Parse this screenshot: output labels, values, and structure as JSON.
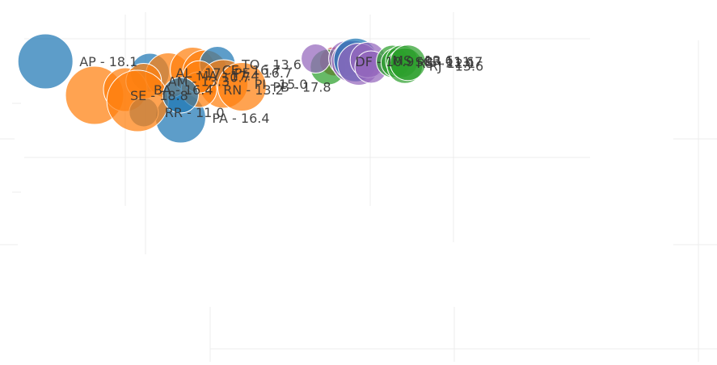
{
  "chart_data": {
    "type": "scatter",
    "title": "",
    "xlabel": "",
    "ylabel": "",
    "grid": true,
    "colors": {
      "blue": "#1f77b4",
      "orange": "#ff7f0e",
      "green": "#2ca02c",
      "red": "#d62728",
      "purple": "#9467bd"
    },
    "points": [
      {
        "label": "PA - 16.4",
        "color": "blue",
        "x": 0.9,
        "y": 1.4,
        "size": 31,
        "show_label": true
      },
      {
        "label": "SE - 18.8",
        "color": "orange",
        "x": -0.5,
        "y": 2.2,
        "size": 36,
        "show_label": true
      },
      {
        "label": "AP - 18.1",
        "color": "blue",
        "x": -1.3,
        "y": 3.4,
        "size": 34,
        "show_label": true
      },
      {
        "label": "AL - 17",
        "color": "blue",
        "x": 0.4,
        "y": 3.0,
        "size": 24,
        "show_label": true
      },
      {
        "label": "MA - 17.4",
        "color": "orange",
        "x": 0.7,
        "y": 2.9,
        "size": 28,
        "show_label": true
      },
      {
        "label": "BA - 16.4",
        "color": "orange",
        "x": 0.0,
        "y": 2.4,
        "size": 27,
        "show_label": true
      },
      {
        "label": "RR - 11.0",
        "color": "blue",
        "x": 0.3,
        "y": 1.6,
        "size": 18,
        "show_label": true
      },
      {
        "label": "CE - 16.7",
        "color": "orange",
        "x": 1.1,
        "y": 3.1,
        "size": 28,
        "show_label": true
      },
      {
        "label": "PE - 16.7",
        "color": "orange",
        "x": 1.3,
        "y": 3.0,
        "size": 28,
        "show_label": true
      },
      {
        "label": "TO - 13.6",
        "color": "blue",
        "x": 1.5,
        "y": 3.3,
        "size": 22,
        "show_label": true
      },
      {
        "label": "PI - 15.0",
        "color": "orange",
        "x": 1.6,
        "y": 2.6,
        "size": 30,
        "show_label": true
      },
      {
        "label": "RN - 13.2",
        "color": "orange",
        "x": 1.2,
        "y": 2.4,
        "size": 22,
        "show_label": true
      },
      {
        "label": "PB - 17.8",
        "color": "orange",
        "x": 1.9,
        "y": 2.5,
        "size": 30,
        "show_label": true
      },
      {
        "label": "AM - 13.3",
        "color": "orange",
        "x": 0.3,
        "y": 2.7,
        "size": 22,
        "show_label": true
      },
      {
        "label": "10.7",
        "color": "orange",
        "x": 1.2,
        "y": 2.85,
        "size": 20,
        "show_label": true
      },
      {
        "label": "",
        "color": "orange",
        "x": 0.2,
        "y": 2.0,
        "size": 38,
        "show_label": false
      },
      {
        "label": "",
        "color": "blue",
        "x": 0.9,
        "y": 2.2,
        "size": 22,
        "show_label": false
      },
      {
        "label": "DF - 10.9",
        "color": "red",
        "x": 3.4,
        "y": 3.4,
        "size": 18,
        "show_label": true
      },
      {
        "label": "",
        "color": "green",
        "x": 3.3,
        "y": 3.2,
        "size": 22,
        "show_label": false
      },
      {
        "label": "",
        "color": "purple",
        "x": 3.1,
        "y": 3.5,
        "size": 18,
        "show_label": false
      },
      {
        "label": "",
        "color": "purple",
        "x": 3.6,
        "y": 3.5,
        "size": 22,
        "show_label": false
      },
      {
        "label": "",
        "color": "purple",
        "x": 3.7,
        "y": 3.4,
        "size": 26,
        "show_label": false
      },
      {
        "label": "",
        "color": "blue",
        "x": 3.75,
        "y": 3.45,
        "size": 27,
        "show_label": false
      },
      {
        "label": "",
        "color": "purple",
        "x": 3.8,
        "y": 3.3,
        "size": 26,
        "show_label": false
      },
      {
        "label": "MS - 13.6",
        "color": "purple",
        "x": 3.95,
        "y": 3.45,
        "size": 22,
        "show_label": true
      },
      {
        "label": "",
        "color": "purple",
        "x": 4.0,
        "y": 3.2,
        "size": 20,
        "show_label": false
      },
      {
        "label": "SC - 11.6",
        "color": "green",
        "x": 4.35,
        "y": 3.4,
        "size": 20,
        "show_label": true
      },
      {
        "label": "RS - 12.1",
        "color": "green",
        "x": 4.4,
        "y": 3.35,
        "size": 18,
        "show_label": true
      },
      {
        "label": "PR - 11.7",
        "color": "green",
        "x": 4.5,
        "y": 3.4,
        "size": 20,
        "show_label": true
      },
      {
        "label": "RJ - 13.6",
        "color": "green",
        "x": 4.55,
        "y": 3.25,
        "size": 22,
        "show_label": true
      },
      {
        "label": "",
        "color": "green",
        "x": 4.6,
        "y": 3.35,
        "size": 22,
        "show_label": false
      }
    ]
  }
}
